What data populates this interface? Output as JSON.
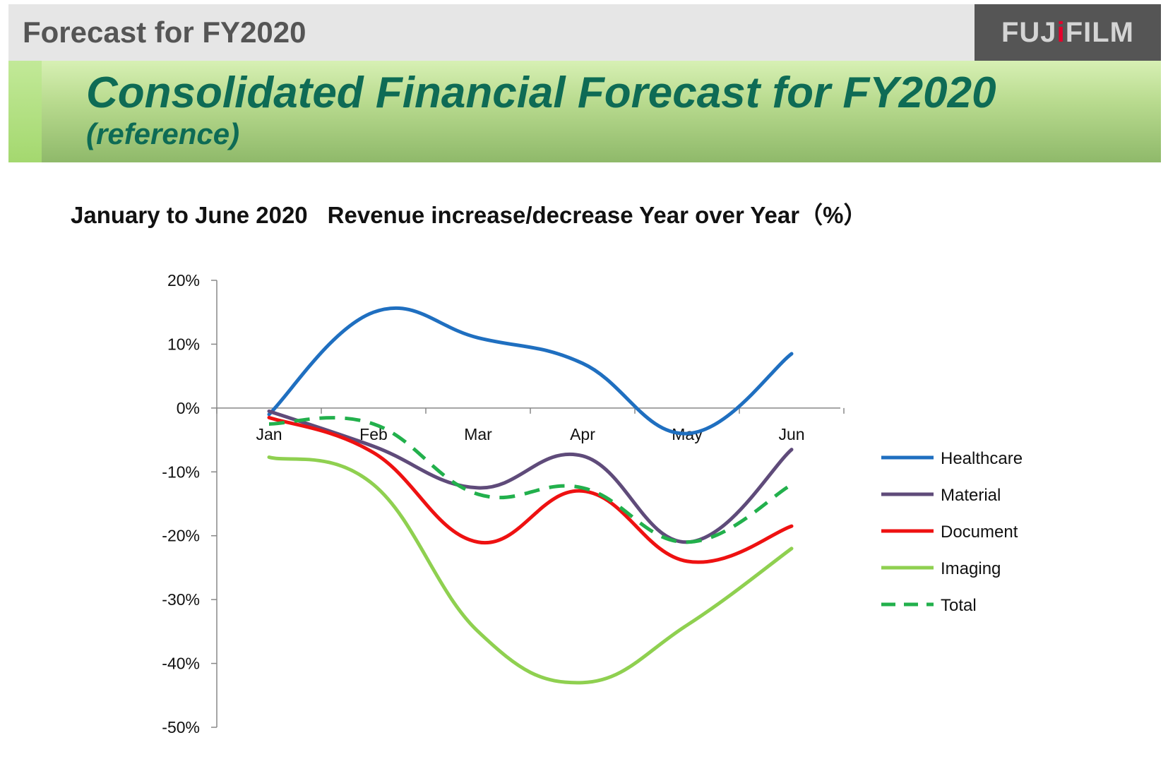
{
  "header": {
    "title": "Forecast for FY2020",
    "logo_text": "FUJIFILM"
  },
  "banner": {
    "title": "Consolidated Financial Forecast for FY2020",
    "subtitle": "(reference)"
  },
  "chart_data": {
    "type": "line",
    "title_part1": "January to June 2020",
    "title_part2": "Revenue increase/decrease Year over Year（%）",
    "categories": [
      "Jan",
      "Feb",
      "Mar",
      "Apr",
      "May",
      "Jun"
    ],
    "y_ticks": [
      "20%",
      "10%",
      "0%",
      "-10%",
      "-20%",
      "-30%",
      "-40%",
      "-50%"
    ],
    "ylim": [
      -50,
      20
    ],
    "grid": false,
    "legend_position": "right",
    "series": [
      {
        "name": "Healthcare",
        "values": [
          -1,
          15,
          11,
          7,
          -4,
          8.5
        ],
        "color": "#1f6fc0",
        "dash": false
      },
      {
        "name": "Material",
        "values": [
          -0.5,
          -6,
          -12.5,
          -7.5,
          -21,
          -6.5
        ],
        "color": "#5f4b7a",
        "dash": false
      },
      {
        "name": "Document",
        "values": [
          -1.5,
          -7,
          -21,
          -13,
          -24,
          -18.5
        ],
        "color": "#ee1111",
        "dash": false
      },
      {
        "name": "Imaging",
        "values": [
          -7.7,
          -12,
          -35,
          -43,
          -34,
          -22
        ],
        "color": "#8fd050",
        "dash": false
      },
      {
        "name": "Total",
        "values": [
          -2.5,
          -2.5,
          -13.5,
          -12.5,
          -21,
          -12
        ],
        "color": "#22b04c",
        "dash": true
      }
    ]
  }
}
